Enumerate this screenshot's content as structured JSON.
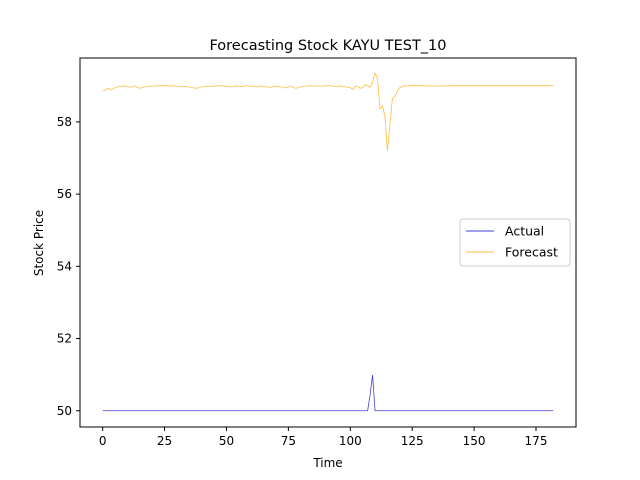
{
  "chart_data": {
    "type": "line",
    "title": "Forecasting Stock KAYU TEST_10",
    "xlabel": "Time",
    "ylabel": "Stock Price",
    "xlim": [
      -9.15,
      191.15
    ],
    "ylim": [
      49.55,
      59.77
    ],
    "xticks": [
      0,
      25,
      50,
      75,
      100,
      125,
      150,
      175
    ],
    "yticks": [
      50,
      52,
      54,
      56,
      58
    ],
    "grid": false,
    "legend_position": "center-right",
    "series": [
      {
        "name": "Actual",
        "color": "#0000cc",
        "points": [
          [
            0,
            50.0
          ],
          [
            107,
            50.0
          ],
          [
            108,
            50.45
          ],
          [
            109,
            50.99
          ],
          [
            110,
            50.0
          ],
          [
            182,
            50.0
          ]
        ]
      },
      {
        "name": "Forecast",
        "color": "#ffa500",
        "points": [
          [
            0,
            58.86
          ],
          [
            1,
            58.88
          ],
          [
            2,
            58.93
          ],
          [
            3,
            58.9
          ],
          [
            4,
            58.91
          ],
          [
            5,
            58.95
          ],
          [
            6,
            58.97
          ],
          [
            7,
            58.98
          ],
          [
            8,
            58.99
          ],
          [
            9,
            59.0
          ],
          [
            10,
            58.98
          ],
          [
            11,
            58.96
          ],
          [
            12,
            58.97
          ],
          [
            13,
            59.0
          ],
          [
            14,
            58.96
          ],
          [
            15,
            58.93
          ],
          [
            16,
            58.95
          ],
          [
            17,
            58.97
          ],
          [
            18,
            58.98
          ],
          [
            19,
            58.99
          ],
          [
            20,
            58.99
          ],
          [
            22,
            59.0
          ],
          [
            25,
            59.0
          ],
          [
            28,
            59.0
          ],
          [
            30,
            58.99
          ],
          [
            32,
            58.98
          ],
          [
            34,
            58.98
          ],
          [
            36,
            58.95
          ],
          [
            38,
            58.93
          ],
          [
            40,
            58.97
          ],
          [
            42,
            58.99
          ],
          [
            44,
            58.98
          ],
          [
            46,
            59.0
          ],
          [
            48,
            59.0
          ],
          [
            50,
            58.98
          ],
          [
            52,
            58.97
          ],
          [
            54,
            59.0
          ],
          [
            56,
            58.98
          ],
          [
            58,
            59.0
          ],
          [
            60,
            58.99
          ],
          [
            62,
            58.97
          ],
          [
            64,
            59.0
          ],
          [
            66,
            58.97
          ],
          [
            68,
            58.96
          ],
          [
            70,
            58.99
          ],
          [
            72,
            58.97
          ],
          [
            74,
            58.94
          ],
          [
            76,
            58.99
          ],
          [
            78,
            58.93
          ],
          [
            80,
            58.97
          ],
          [
            82,
            58.99
          ],
          [
            84,
            59.0
          ],
          [
            86,
            58.99
          ],
          [
            88,
            58.99
          ],
          [
            90,
            59.0
          ],
          [
            92,
            59.0
          ],
          [
            94,
            58.98
          ],
          [
            96,
            59.0
          ],
          [
            98,
            58.97
          ],
          [
            100,
            58.95
          ],
          [
            101,
            58.9
          ],
          [
            102,
            58.98
          ],
          [
            103,
            58.99
          ],
          [
            104,
            58.93
          ],
          [
            105,
            58.95
          ],
          [
            106,
            59.03
          ],
          [
            107,
            59.0
          ],
          [
            108,
            58.96
          ],
          [
            109,
            59.1
          ],
          [
            110,
            59.35
          ],
          [
            111,
            59.2
          ],
          [
            112,
            58.36
          ],
          [
            113,
            58.44
          ],
          [
            114,
            58.15
          ],
          [
            115,
            57.2
          ],
          [
            116,
            57.9
          ],
          [
            117,
            58.65
          ],
          [
            118,
            58.7
          ],
          [
            119,
            58.85
          ],
          [
            120,
            58.95
          ],
          [
            122,
            59.0
          ],
          [
            125,
            59.0
          ],
          [
            130,
            59.0
          ],
          [
            135,
            58.99
          ],
          [
            140,
            59.0
          ],
          [
            145,
            59.0
          ],
          [
            150,
            59.0
          ],
          [
            155,
            59.0
          ],
          [
            160,
            59.0
          ],
          [
            165,
            59.0
          ],
          [
            170,
            59.0
          ],
          [
            175,
            59.0
          ],
          [
            180,
            59.0
          ],
          [
            182,
            59.0
          ]
        ]
      }
    ]
  }
}
